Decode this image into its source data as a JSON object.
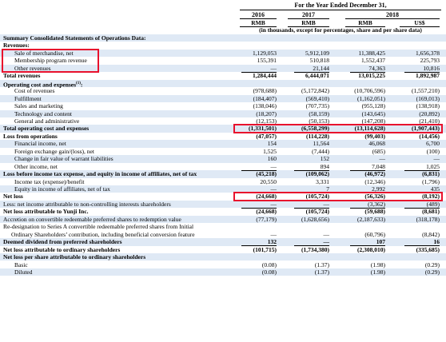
{
  "header": {
    "period": "For the Year Ended December 31,",
    "years": [
      "2016",
      "2017",
      "2018",
      ""
    ],
    "currencies": [
      "RMB",
      "RMB",
      "RMB",
      "US$"
    ],
    "units_note": "(in thousands, except for percentages, share and per share data)"
  },
  "rows": [
    {
      "label": "Summary Consolidated Statements of Operations Data:",
      "v": [
        "",
        "",
        "",
        ""
      ]
    },
    {
      "label": "Revenues:",
      "v": [
        "",
        "",
        "",
        ""
      ]
    },
    {
      "label": "Sale of merchandise, net",
      "v": [
        "1,129,053",
        "5,912,109",
        "11,388,425",
        "1,656,378"
      ]
    },
    {
      "label": "Membership program revenue",
      "v": [
        "155,391",
        "510,818",
        "1,552,437",
        "225,793"
      ]
    },
    {
      "label": "Other revenues",
      "v": [
        "—",
        "21,144",
        "74,363",
        "10,816"
      ]
    },
    {
      "label": "Total revenues",
      "v": [
        "1,284,444",
        "6,444,071",
        "13,015,225",
        "1,892,987"
      ]
    },
    {
      "label": "Operating cost and expenses",
      "sup": "(1)",
      "tail": ":",
      "v": [
        "",
        "",
        "",
        ""
      ]
    },
    {
      "label": "Cost of revenues",
      "v": [
        "(978,688)",
        "(5,172,842)",
        "(10,706,596)",
        "(1,557,210)"
      ]
    },
    {
      "label": "Fulfillment",
      "v": [
        "(184,407)",
        "(569,410)",
        "(1,162,051)",
        "(169,013)"
      ]
    },
    {
      "label": "Sales and marketing",
      "v": [
        "(138,046)",
        "(707,735)",
        "(955,128)",
        "(138,918)"
      ]
    },
    {
      "label": "Technology and content",
      "v": [
        "(18,207)",
        "(58,159)",
        "(143,645)",
        "(20,892)"
      ]
    },
    {
      "label": "General and administrative",
      "v": [
        "(12,153)",
        "(50,153)",
        "(147,208)",
        "(21,410)"
      ]
    },
    {
      "label": "Total operating cost and expenses",
      "v": [
        "(1,331,501)",
        "(6,558,299)",
        "(13,114,628)",
        "(1,907,443)"
      ]
    },
    {
      "label": "Loss from operations",
      "v": [
        "(47,057)",
        "(114,228)",
        "(99,403)",
        "(14,456)"
      ]
    },
    {
      "label": "Financial income, net",
      "v": [
        "154",
        "11,564",
        "46,068",
        "6,700"
      ]
    },
    {
      "label": "Foreign exchange gain/(loss), net",
      "v": [
        "1,525",
        "(7,444)",
        "(685)",
        "(100)"
      ]
    },
    {
      "label": "Change in fair value of warrant liabilities",
      "v": [
        "160",
        "152",
        "—",
        "—"
      ]
    },
    {
      "label": "Other income, net",
      "v": [
        "—",
        "894",
        "7,048",
        "1,025"
      ]
    },
    {
      "label": "Loss before income tax expense, and equity in income of affiliates, net of tax",
      "v": [
        "(45,218)",
        "(109,062)",
        "(46,972)",
        "(6,831)"
      ]
    },
    {
      "label": "Income tax (expense)/benefit",
      "v": [
        "20,550",
        "3,331",
        "(12,346)",
        "(1,796)"
      ]
    },
    {
      "label": "Equity in income of affiliates, net of tax",
      "v": [
        "—",
        "7",
        "2,992",
        "435"
      ]
    },
    {
      "label": "Net loss",
      "v": [
        "(24,668)",
        "(105,724)",
        "(56,326)",
        "(8,192)"
      ]
    },
    {
      "label": "Less: net income attributable to non-controlling interests shareholders",
      "v": [
        "—",
        "—",
        "(3,362)",
        "(489)"
      ]
    },
    {
      "label": "Net loss attributable to Yunji Inc.",
      "v": [
        "(24,668)",
        "(105,724)",
        "(59,688)",
        "(8,681)"
      ]
    },
    {
      "label": "Accretion on convertible redeemable preferred shares to redemption value",
      "v": [
        "(77,179)",
        "(1,628,656)",
        "(2,187,633)",
        "(318,178)"
      ]
    },
    {
      "label": "Re-designation to Series A convertible redeemable preferred shares from Initial",
      "v": [
        "",
        "",
        "",
        ""
      ]
    },
    {
      "label": "Ordinary Shareholders’ contribution, including beneficial conversion feature",
      "v": [
        "—",
        "—",
        "(60,796)",
        "(8,842)"
      ]
    },
    {
      "label": "Deemed dividend from preferred shareholders",
      "v": [
        "132",
        "—",
        "107",
        "16"
      ]
    },
    {
      "label": "Net loss attributable to ordinary shareholders",
      "v": [
        "(101,715)",
        "(1,734,380)",
        "(2,308,010)",
        "(335,685)"
      ]
    },
    {
      "label": "Net loss per share attributable to ordinary shareholders",
      "v": [
        "",
        "",
        "",
        ""
      ]
    },
    {
      "label": "Basic",
      "v": [
        "(0.08)",
        "(1.37)",
        "(1.98)",
        "(0.29)"
      ]
    },
    {
      "label": "Diluted",
      "v": [
        "(0.08)",
        "(1.37)",
        "(1.98)",
        "(0.29)"
      ]
    }
  ],
  "colors": {
    "highlight": "#e8112d",
    "shade": "#dfe9f5"
  }
}
